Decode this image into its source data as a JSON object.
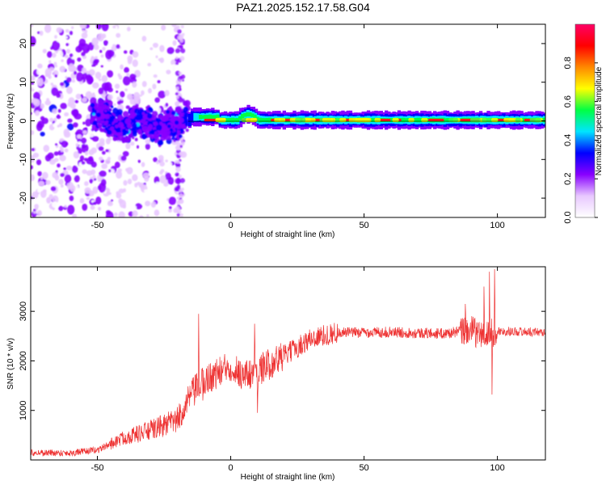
{
  "title": "PAZ1.2025.152.17.58.G04",
  "chart_data": [
    {
      "type": "heatmap",
      "xlabel": "Height of straight line (km)",
      "ylabel": "Frequency (Hz)",
      "xlim": [
        -75,
        118
      ],
      "ylim": [
        -25,
        25
      ],
      "x_ticks": [
        "-50",
        "0",
        "50",
        "100"
      ],
      "y_ticks": [
        "-20",
        "-10",
        "0",
        "10",
        "20"
      ],
      "colorbar": {
        "label": "Normalized spectral amplitude",
        "range": [
          0,
          1
        ],
        "ticks": [
          "0.0",
          "0.2",
          "0.4",
          "0.6",
          "0.8"
        ],
        "colors": [
          "#ffffff",
          "#e8c8ff",
          "#8800ff",
          "#0000ff",
          "#00e5ff",
          "#00ff44",
          "#ffff00",
          "#ff8800",
          "#ff0000",
          "#ff0066"
        ]
      }
    },
    {
      "type": "line",
      "xlabel": "Height of straight line (km)",
      "ylabel": "SNR (10 * v/v)",
      "xlim": [
        -75,
        118
      ],
      "ylim": [
        0,
        3900
      ],
      "x_ticks": [
        "-50",
        "0",
        "50",
        "100"
      ],
      "y_ticks": [
        "1000",
        "2000",
        "3000"
      ],
      "color": "#ee3333",
      "series_profile": [
        [
          -75,
          150
        ],
        [
          -60,
          140
        ],
        [
          -50,
          200
        ],
        [
          -40,
          450
        ],
        [
          -30,
          600
        ],
        [
          -20,
          800
        ],
        [
          -15,
          1300
        ],
        [
          -10,
          1600
        ],
        [
          -5,
          1750
        ],
        [
          0,
          1900
        ],
        [
          5,
          1700
        ],
        [
          10,
          1800
        ],
        [
          20,
          2100
        ],
        [
          30,
          2450
        ],
        [
          40,
          2570
        ],
        [
          60,
          2580
        ],
        [
          80,
          2550
        ],
        [
          90,
          2620
        ],
        [
          95,
          2500
        ],
        [
          100,
          2600
        ],
        [
          118,
          2580
        ]
      ],
      "spikes": [
        [
          -12,
          2950
        ],
        [
          -10.5,
          1200
        ],
        [
          9,
          2750
        ],
        [
          10,
          950
        ],
        [
          88,
          3150
        ],
        [
          95,
          3500
        ],
        [
          97,
          3800
        ],
        [
          98,
          1320
        ],
        [
          99,
          3850
        ]
      ]
    }
  ]
}
